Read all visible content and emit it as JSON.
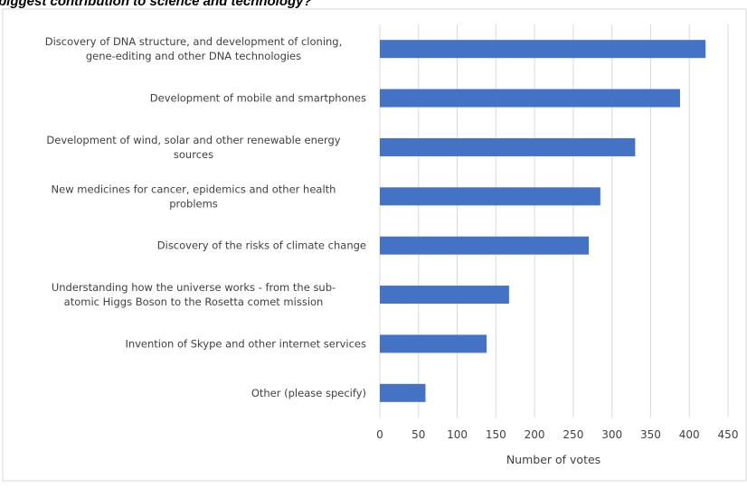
{
  "chart_data": {
    "type": "bar",
    "orientation": "horizontal",
    "title": "biggest contribution to science and technology?",
    "xlabel": "Number  of votes",
    "ylabel": "",
    "xlim": [
      0,
      450
    ],
    "xticks": [
      0,
      50,
      100,
      150,
      200,
      250,
      300,
      350,
      400,
      450
    ],
    "grid": true,
    "legend": "none",
    "categories": [
      [
        "Discovery of DNA structure, and development of cloning,",
        "gene-editing and other DNA technologies"
      ],
      [
        "Development of mobile and smartphones"
      ],
      [
        "Development of wind, solar and other renewable energy",
        "sources"
      ],
      [
        "New medicines for cancer, epidemics and other health",
        "problems"
      ],
      [
        "Discovery of the risks of climate change"
      ],
      [
        "Understanding how the universe works - from the sub-",
        "atomic Higgs Boson to the Rosetta comet mission"
      ],
      [
        "Invention of Skype and other internet services"
      ],
      [
        "Other (please specify)"
      ]
    ],
    "values": [
      421,
      388,
      330,
      285,
      270,
      167,
      138,
      59
    ],
    "bar_color": "#4472c4"
  }
}
